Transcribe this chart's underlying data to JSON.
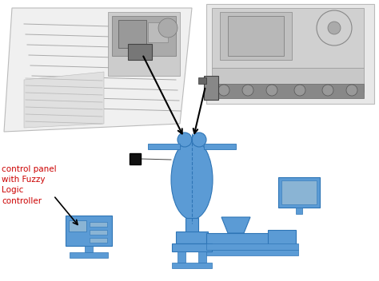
{
  "bg_color": "#ffffff",
  "blue_color": "#5b9bd5",
  "dark_blue": "#2e75b6",
  "black": "#000000",
  "red_text": "#cc0000",
  "label_text": "control panel\nwith Fuzzy\nLogic\ncontroller",
  "label_fontsize": 7.5,
  "fig_width": 4.74,
  "fig_height": 3.52,
  "dpi": 100,
  "gray_light": "#e8e8e8",
  "gray_mid": "#c0c0c0",
  "gray_dark": "#888888",
  "gray_darker": "#666666"
}
